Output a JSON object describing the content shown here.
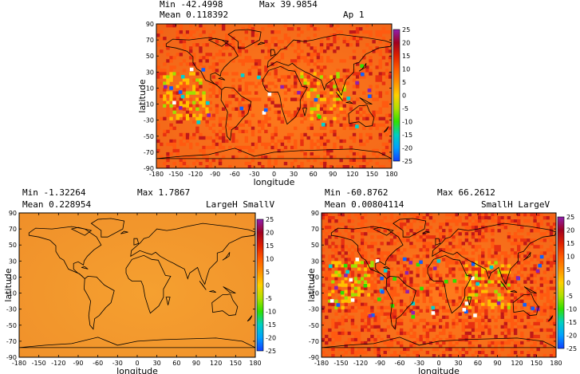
{
  "panels": [
    {
      "id": "top",
      "min_label": "Min  -42.4998",
      "max_label": "Max  39.9854",
      "mean_label": "Mean  0.118392",
      "case_label": "Ap  1",
      "has_colorbar": true,
      "noise": 0.55,
      "xlabel": "longitude",
      "ylabel": "latitude"
    },
    {
      "id": "bottom-left",
      "min_label": "Min  -1.32264",
      "max_label": "Max  1.7867",
      "mean_label": "Mean  0.228954",
      "case_label": "LargeH  SmallV",
      "has_colorbar": true,
      "noise": 0.0,
      "xlabel": "longitude",
      "ylabel": "latitude"
    },
    {
      "id": "bottom-right",
      "min_label": "Min  -60.8762",
      "max_label": "Max  66.2612",
      "mean_label": "Mean  0.00804114",
      "case_label": "SmallH  LargeV",
      "has_colorbar": true,
      "noise": 0.75,
      "xlabel": "longitude",
      "ylabel": "latitude"
    }
  ],
  "lon_ticks": [
    "-180",
    "-150",
    "-120",
    "-90",
    "-60",
    "-30",
    "0",
    "30",
    "60",
    "90",
    "120",
    "150",
    "180"
  ],
  "lat_ticks": [
    "90",
    "70",
    "50",
    "30",
    "10",
    "-10",
    "-30",
    "-50",
    "-70",
    "-90"
  ],
  "colorbar_ticks": [
    "25",
    "20",
    "15",
    "10",
    "5",
    "0",
    "-5",
    "-10",
    "-15",
    "-20",
    "-25"
  ],
  "colors": {
    "purple": "#a020c0",
    "red": "#c81010",
    "orange": "#ff8000",
    "yellow": "#e8e000",
    "green": "#40e000",
    "cyan": "#00d0d0",
    "blue": "#1060ff"
  }
}
